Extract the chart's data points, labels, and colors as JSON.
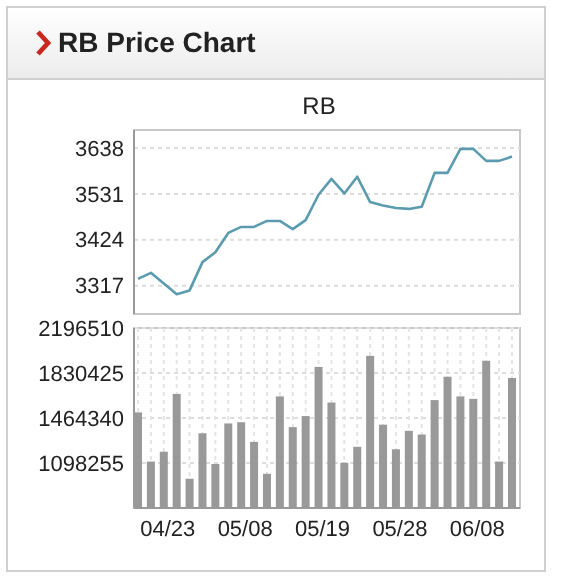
{
  "chart_data": [
    {
      "type": "line",
      "title": "RB Price Chart",
      "subtitle": "RB",
      "categories": [
        null,
        null,
        null,
        null,
        null,
        null,
        null,
        null,
        null,
        null,
        null,
        null,
        null,
        null,
        null,
        null,
        null,
        null,
        null,
        null,
        null,
        null,
        null,
        null,
        null,
        null,
        null,
        null,
        null,
        null
      ],
      "series": [
        {
          "color": "#5b9bb0",
          "values": [
            3333,
            3347,
            3322,
            3297,
            3306,
            3372,
            3395,
            3440,
            3454,
            3454,
            3468,
            3468,
            3449,
            3470,
            3529,
            3566,
            3532,
            3571,
            3512,
            3504,
            3498,
            3496,
            3501,
            3580,
            3580,
            3636,
            3636,
            3608,
            3608,
            3618
          ]
        }
      ],
      "ylim": [
        3251,
        3680
      ],
      "yticks": [
        3317,
        3424,
        3531,
        3638
      ],
      "grid": "y",
      "tick_labels": "y",
      "marker": "none"
    },
    {
      "type": "bar",
      "categories": [
        null,
        null,
        "04/23",
        null,
        null,
        null,
        null,
        null,
        "05/08",
        null,
        null,
        null,
        null,
        null,
        "05/19",
        null,
        null,
        null,
        null,
        null,
        "05/28",
        null,
        null,
        null,
        null,
        null,
        "06/08",
        null,
        null,
        null
      ],
      "series": [
        {
          "color": "#999999",
          "values": [
            1510000,
            1110000,
            1190000,
            1660000,
            970000,
            1340000,
            1090000,
            1420000,
            1430000,
            1270000,
            1010000,
            1640000,
            1390000,
            1480000,
            1880000,
            1590000,
            1100000,
            1230000,
            1970000,
            1410000,
            1210000,
            1360000,
            1330000,
            1610000,
            1800000,
            1640000,
            1620000,
            1930000,
            1110000,
            1790000
          ]
        }
      ],
      "ylim": [
        732170,
        2196510
      ],
      "yticks": [
        1098255,
        1464340,
        1830425,
        2196510
      ],
      "grid": true
    }
  ]
}
